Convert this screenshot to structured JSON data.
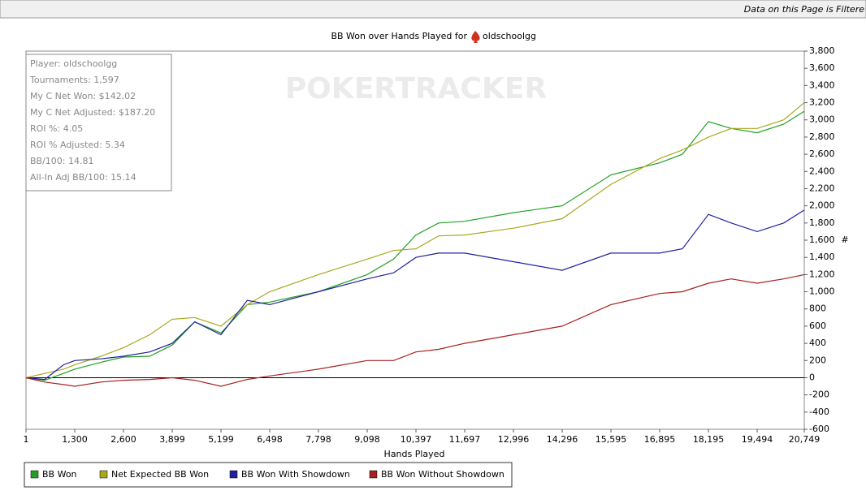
{
  "banner": "Data on this Page is Filtere",
  "chart_data": {
    "type": "line",
    "title": "BB Won over Hands Played for",
    "title_player": "oldschoolgg",
    "watermark": "POKERTRACKER",
    "x_label": "Hands Played",
    "y_label": "#",
    "stats": [
      "Player: oldschoolgg",
      "Tournaments: 1,597",
      "My C Net Won: $142.02",
      "My C Net Adjusted: $187.20",
      "ROI %: 4.05",
      "ROI % Adjusted: 5.34",
      "BB/100: 14.81",
      "All-In Adj BB/100: 15.14"
    ],
    "x": [
      1,
      500,
      1000,
      1300,
      2000,
      2600,
      3300,
      3899,
      4500,
      5199,
      5900,
      6498,
      7798,
      9098,
      9800,
      10397,
      11000,
      11697,
      12996,
      14296,
      15595,
      16895,
      17500,
      18195,
      18800,
      19494,
      20200,
      20749
    ],
    "series": [
      {
        "name": "BB Won",
        "color": "#22a022",
        "values": [
          0,
          -30,
          50,
          100,
          180,
          240,
          250,
          380,
          650,
          520,
          850,
          880,
          1000,
          1200,
          1380,
          1660,
          1800,
          1820,
          1920,
          2000,
          2360,
          2500,
          2600,
          2980,
          2900,
          2850,
          2950,
          3100
        ]
      },
      {
        "name": "Net Expected BB Won",
        "color": "#a8a820",
        "values": [
          0,
          50,
          100,
          150,
          250,
          350,
          500,
          680,
          700,
          600,
          850,
          1000,
          1200,
          1380,
          1480,
          1500,
          1650,
          1660,
          1740,
          1850,
          2250,
          2550,
          2650,
          2800,
          2900,
          2900,
          3000,
          3200
        ]
      },
      {
        "name": "BB Won With Showdown",
        "color": "#2020a0",
        "values": [
          0,
          -20,
          150,
          200,
          220,
          250,
          300,
          400,
          650,
          500,
          900,
          850,
          1000,
          1150,
          1220,
          1400,
          1450,
          1450,
          1350,
          1250,
          1450,
          1450,
          1500,
          1900,
          1800,
          1700,
          1800,
          1950
        ]
      },
      {
        "name": "BB Won Without Showdown",
        "color": "#a82020",
        "values": [
          0,
          -50,
          -80,
          -100,
          -50,
          -30,
          -20,
          0,
          -30,
          -100,
          -20,
          20,
          100,
          200,
          200,
          300,
          330,
          400,
          500,
          600,
          850,
          980,
          1000,
          1100,
          1150,
          1100,
          1150,
          1200
        ]
      }
    ],
    "xlim": [
      1,
      20749
    ],
    "xticks": [
      1,
      {
        "value": 1300,
        "label": "1,300"
      },
      {
        "value": 2600,
        "label": "2,600"
      },
      {
        "value": 3899,
        "label": "3,899"
      },
      {
        "value": 5199,
        "label": "5,199"
      },
      {
        "value": 6498,
        "label": "6,498"
      },
      {
        "value": 7798,
        "label": "7,798"
      },
      {
        "value": 9098,
        "label": "9,098"
      },
      {
        "value": 10397,
        "label": "10,397"
      },
      {
        "value": 11697,
        "label": "11,697"
      },
      {
        "value": 12996,
        "label": "12,996"
      },
      {
        "value": 14296,
        "label": "14,296"
      },
      {
        "value": 15595,
        "label": "15,595"
      },
      {
        "value": 16895,
        "label": "16,895"
      },
      {
        "value": 18195,
        "label": "18,195"
      },
      {
        "value": 19494,
        "label": "19,494"
      },
      {
        "value": 20749,
        "label": "20,749"
      }
    ],
    "ylim": [
      -600,
      3800
    ],
    "yticks": [
      -600,
      -400,
      -200,
      0,
      200,
      400,
      600,
      800,
      {
        "value": 1000,
        "label": "1,000"
      },
      {
        "value": 1200,
        "label": "1,200"
      },
      {
        "value": 1400,
        "label": "1,400"
      },
      {
        "value": 1600,
        "label": "1,600"
      },
      {
        "value": 1800,
        "label": "1,800"
      },
      {
        "value": 2000,
        "label": "2,000"
      },
      {
        "value": 2200,
        "label": "2,200"
      },
      {
        "value": 2400,
        "label": "2,400"
      },
      {
        "value": 2600,
        "label": "2,600"
      },
      {
        "value": 2800,
        "label": "2,800"
      },
      {
        "value": 3000,
        "label": "3,000"
      },
      {
        "value": 3200,
        "label": "3,200"
      },
      {
        "value": 3400,
        "label": "3,400"
      },
      {
        "value": 3600,
        "label": "3,600"
      },
      {
        "value": 3800,
        "label": "3,800"
      }
    ],
    "zero_line": true
  }
}
